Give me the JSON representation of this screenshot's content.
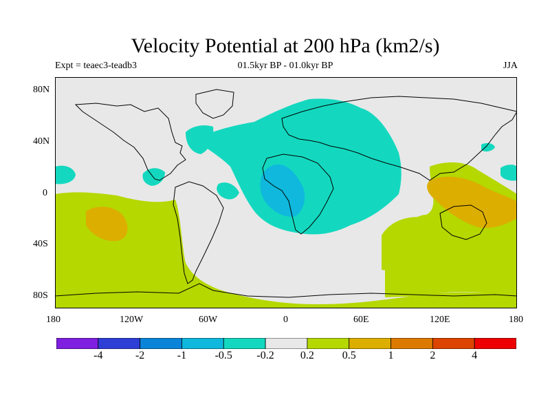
{
  "title": "Velocity Potential at 200 hPa (km2/s)",
  "left_subtitle": "Expt = teaec3-teadb3",
  "center_subtitle": "01.5kyr BP - 01.0kyr BP",
  "season": "JJA",
  "lat_labels": [
    "80N",
    "40N",
    "0",
    "40S",
    "80S"
  ],
  "lon_labels": [
    "180",
    "120W",
    "60W",
    "0",
    "60E",
    "120E",
    "180"
  ],
  "colorbar": {
    "colors": [
      "#7f1fdf",
      "#2e3fd6",
      "#0a84d8",
      "#0fb8dc",
      "#13d8bf",
      "#e8e8e8",
      "#b4d800",
      "#dcae00",
      "#dc7a00",
      "#dc4400",
      "#ee0000"
    ],
    "labels": [
      "-4",
      "-2",
      "-1",
      "-0.5",
      "-0.2",
      "0.2",
      "0.5",
      "1",
      "2",
      "4"
    ]
  },
  "palette": {
    "background_field": "#e8e8e8",
    "negative_weak": "#13d8bf",
    "negative_moderate": "#0fb8dc",
    "positive_weak": "#b4d800",
    "positive_moderate": "#dcae00",
    "coastline": "#000000"
  }
}
